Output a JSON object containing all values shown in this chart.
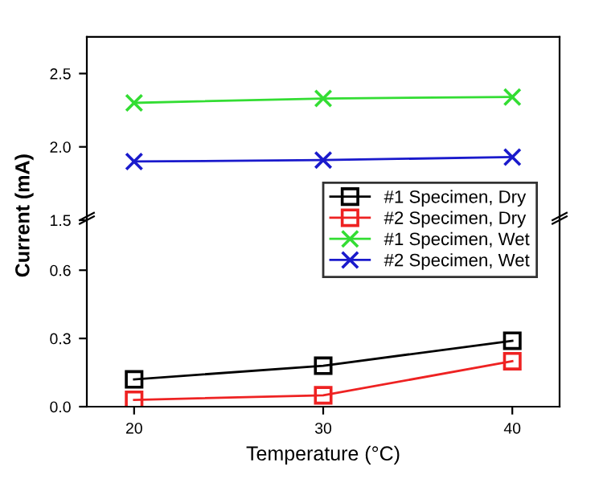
{
  "chart_data": [
    {
      "type": "line",
      "ylabel": "Current (mA)",
      "x": [
        20,
        30,
        40
      ],
      "xlim": [
        17.5,
        42.5
      ],
      "xticks": [
        20,
        30,
        40
      ],
      "ylim": [
        1.5,
        2.75
      ],
      "yticks": [
        1.5,
        {
          "value": 2,
          "label": "2.0"
        },
        2.5
      ],
      "tick_labels": "y",
      "legend": "right",
      "grid": false,
      "series": [
        {
          "name": "#1 Specimen, Wet",
          "color": "#33dd33",
          "marker": "cross",
          "values": [
            2.3,
            2.33,
            2.34
          ]
        },
        {
          "name": "#2 Specimen, Wet",
          "color": "#1a1acc",
          "marker": "cross",
          "values": [
            1.9,
            1.91,
            1.93
          ]
        }
      ]
    },
    {
      "type": "line",
      "xlabel": "Temperature (°C)",
      "x": [
        20,
        30,
        40
      ],
      "xlim": [
        17.5,
        42.5
      ],
      "xticks": [
        20,
        30,
        40
      ],
      "ylim": [
        0,
        0.82
      ],
      "yticks": [
        {
          "value": 0,
          "label": "0.0"
        },
        0.3,
        0.6
      ],
      "legend": "right",
      "grid": false,
      "series": [
        {
          "name": "#1 Specimen, Dry",
          "color": "#000000",
          "marker": "square",
          "values": [
            0.12,
            0.18,
            0.29
          ]
        },
        {
          "name": "#2 Specimen, Dry",
          "color": "#ee2222",
          "marker": "square",
          "values": [
            0.03,
            0.05,
            0.2
          ]
        }
      ]
    }
  ]
}
